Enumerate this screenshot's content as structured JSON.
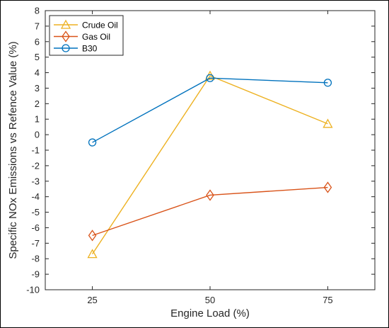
{
  "chart_data": {
    "type": "line",
    "x": [
      25,
      50,
      75
    ],
    "x_ticks": [
      "25",
      "50",
      "75"
    ],
    "xlabel": "Engine Load (%)",
    "ylabel": "Specific NOx Emissions vs Refence Value (%)",
    "xlim": [
      15,
      85
    ],
    "ylim": [
      -10,
      8
    ],
    "y_ticks": [
      "-10",
      "-9",
      "-8",
      "-7",
      "-6",
      "-5",
      "-4",
      "-3",
      "-2",
      "-1",
      "0",
      "1",
      "2",
      "3",
      "4",
      "5",
      "6",
      "7",
      "8"
    ],
    "grid": false,
    "legend_position": "top-left",
    "series": [
      {
        "name": "Crude Oil",
        "values": [
          -7.7,
          3.8,
          0.7
        ],
        "color": "#EDB120",
        "marker": "triangle"
      },
      {
        "name": "Gas Oil",
        "values": [
          -6.5,
          -3.9,
          -3.4
        ],
        "color": "#D95319",
        "marker": "diamond"
      },
      {
        "name": "B30",
        "values": [
          -0.5,
          3.65,
          3.35
        ],
        "color": "#0072BD",
        "marker": "circle"
      }
    ]
  }
}
